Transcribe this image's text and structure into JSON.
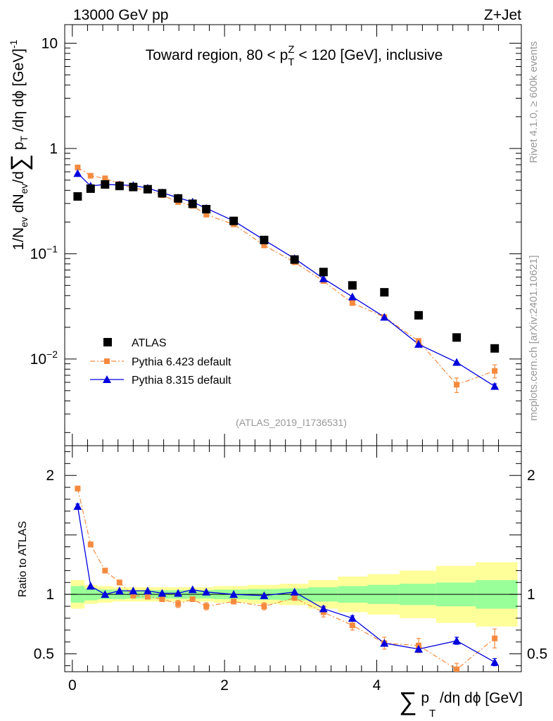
{
  "header": {
    "left": "13000 GeV pp",
    "right": "Z+Jet"
  },
  "side_labels": {
    "top": "Rivet 4.1.0, ≥ 600k events",
    "bottom": "mcplots.cern.ch [arXiv:2401.10621]"
  },
  "colors": {
    "atlas": "#000000",
    "pythia6": "#f58a3f",
    "pythia8": "#0000dd",
    "band_inner": "#99ff99",
    "band_outer": "#ffff99"
  },
  "chart_data": [
    {
      "type": "scatter",
      "yscale": "log",
      "title_parts": {
        "pre": "Toward region, 80 < p",
        "sub": "T",
        "sup": "Z",
        "post": " < 120 [GeV], inclusive"
      },
      "ylabel_parts": {
        "a": "1/N",
        "a_sub": "ev",
        "b": " dN",
        "b_sub": "ev",
        "c": "/d",
        "sym": "∑",
        "d": " p",
        "d_sub": "T",
        "e": " /dη dϕ  [GeV]",
        "e_sup": "-1"
      },
      "reference": "(ATLAS_2019_I1736531)",
      "xlim": [
        -0.1,
        5.9
      ],
      "ylim": [
        0.0015,
        15
      ],
      "y_ticks": [
        {
          "value": 10,
          "label": "10"
        },
        {
          "value": 1,
          "label": "1"
        },
        {
          "value": 0.1,
          "base": "10",
          "exp": "−1"
        },
        {
          "value": 0.01,
          "base": "10",
          "exp": "−2"
        }
      ],
      "legend": {
        "position": "bottom-left"
      },
      "series": [
        {
          "name": "ATLAS",
          "marker": "square",
          "x": [
            0.07,
            0.24,
            0.43,
            0.62,
            0.8,
            0.99,
            1.18,
            1.39,
            1.58,
            1.76,
            2.12,
            2.52,
            2.92,
            3.3,
            3.68,
            4.1,
            4.55,
            5.05,
            5.55
          ],
          "y": [
            0.35,
            0.415,
            0.455,
            0.44,
            0.43,
            0.41,
            0.375,
            0.335,
            0.298,
            0.265,
            0.205,
            0.135,
            0.088,
            0.067,
            0.05,
            0.043,
            0.026,
            0.016,
            0.0126
          ]
        },
        {
          "name": "Pythia 6.423 default",
          "marker": "square-small",
          "line": "dashdot",
          "x": [
            0.07,
            0.24,
            0.43,
            0.62,
            0.8,
            0.99,
            1.18,
            1.39,
            1.58,
            1.76,
            2.12,
            2.52,
            2.92,
            3.3,
            3.68,
            4.1,
            4.55,
            5.05,
            5.55
          ],
          "y": [
            0.66,
            0.55,
            0.52,
            0.46,
            0.42,
            0.4,
            0.36,
            0.31,
            0.285,
            0.235,
            0.19,
            0.12,
            0.083,
            0.055,
            0.034,
            0.025,
            0.0148,
            0.0057,
            0.0077
          ],
          "yerr": [
            0.02,
            0.015,
            0.012,
            0.01,
            0.01,
            0.01,
            0.008,
            0.008,
            0.007,
            0.006,
            0.005,
            0.003,
            0.002,
            0.0015,
            0.0012,
            0.001,
            0.0008,
            0.0009,
            0.0011
          ]
        },
        {
          "name": "Pythia 8.315 default",
          "marker": "triangle",
          "line": "solid",
          "x": [
            0.07,
            0.24,
            0.43,
            0.62,
            0.8,
            0.99,
            1.18,
            1.39,
            1.58,
            1.76,
            2.12,
            2.52,
            2.92,
            3.3,
            3.68,
            4.1,
            4.55,
            5.05,
            5.55
          ],
          "y": [
            0.58,
            0.44,
            0.455,
            0.45,
            0.445,
            0.42,
            0.38,
            0.34,
            0.31,
            0.27,
            0.205,
            0.135,
            0.09,
            0.058,
            0.039,
            0.025,
            0.0138,
            0.0093,
            0.0055
          ],
          "yerr": [
            0.015,
            0.01,
            0.01,
            0.01,
            0.01,
            0.01,
            0.008,
            0.007,
            0.006,
            0.005,
            0.004,
            0.003,
            0.002,
            0.0012,
            0.0009,
            0.0006,
            0.0004,
            0.0003,
            0.0003
          ]
        }
      ]
    },
    {
      "type": "scatter",
      "ylabel": "Ratio to ATLAS",
      "xlabel_parts": {
        "sym": "∑",
        "a": " p",
        "a_sub": "T",
        "b": " /dη dϕ [GeV]"
      },
      "xlim": [
        -0.1,
        5.9
      ],
      "ylim": [
        0.35,
        2.25
      ],
      "x_ticks": [
        0,
        2,
        4
      ],
      "y_ticks": [
        {
          "value": 2,
          "label": "2"
        },
        {
          "value": 1,
          "label": "1"
        },
        {
          "value": 0.5,
          "label": "0.5"
        }
      ],
      "reference_line": 1,
      "bands": {
        "edges": [
          -0.02,
          0.16,
          0.33,
          0.53,
          0.71,
          0.9,
          1.09,
          1.29,
          1.49,
          1.67,
          1.86,
          2.3,
          2.72,
          3.1,
          3.49,
          3.88,
          4.3,
          4.78,
          5.3,
          5.85
        ],
        "inner": [
          0.07,
          0.05,
          0.04,
          0.04,
          0.035,
          0.035,
          0.035,
          0.035,
          0.035,
          0.035,
          0.04,
          0.045,
          0.05,
          0.06,
          0.07,
          0.08,
          0.09,
          0.1,
          0.12
        ],
        "outer": [
          0.12,
          0.08,
          0.07,
          0.06,
          0.06,
          0.06,
          0.06,
          0.06,
          0.06,
          0.06,
          0.07,
          0.08,
          0.09,
          0.12,
          0.15,
          0.17,
          0.2,
          0.24,
          0.27
        ]
      },
      "series": [
        {
          "name": "Pythia 6.423 default",
          "marker": "square-small",
          "line": "dashdot",
          "x": [
            0.07,
            0.24,
            0.43,
            0.62,
            0.8,
            0.99,
            1.18,
            1.39,
            1.58,
            1.76,
            2.12,
            2.52,
            2.92,
            3.3,
            3.68,
            4.1,
            4.55,
            5.05,
            5.55
          ],
          "y": [
            1.89,
            1.42,
            1.2,
            1.1,
            0.99,
            0.98,
            0.96,
            0.92,
            0.96,
            0.9,
            0.94,
            0.9,
            0.97,
            0.85,
            0.74,
            0.59,
            0.57,
            0.37,
            0.63
          ],
          "yerr": [
            0.02,
            0.02,
            0.02,
            0.02,
            0.02,
            0.02,
            0.02,
            0.03,
            0.02,
            0.03,
            0.02,
            0.03,
            0.02,
            0.04,
            0.04,
            0.05,
            0.06,
            0.05,
            0.08
          ]
        },
        {
          "name": "Pythia 8.315 default",
          "marker": "triangle",
          "line": "solid",
          "x": [
            0.07,
            0.24,
            0.43,
            0.62,
            0.8,
            0.99,
            1.18,
            1.39,
            1.58,
            1.76,
            2.12,
            2.52,
            2.92,
            3.3,
            3.68,
            4.1,
            4.55,
            5.05,
            5.55
          ],
          "y": [
            1.74,
            1.07,
            1.0,
            1.03,
            1.03,
            1.03,
            1.01,
            1.01,
            1.04,
            1.02,
            1.0,
            0.99,
            1.02,
            0.88,
            0.8,
            0.59,
            0.54,
            0.61,
            0.43
          ],
          "yerr": [
            0.02,
            0.015,
            0.015,
            0.015,
            0.015,
            0.015,
            0.015,
            0.015,
            0.015,
            0.015,
            0.015,
            0.015,
            0.015,
            0.02,
            0.02,
            0.02,
            0.02,
            0.03,
            0.03
          ]
        }
      ]
    }
  ]
}
